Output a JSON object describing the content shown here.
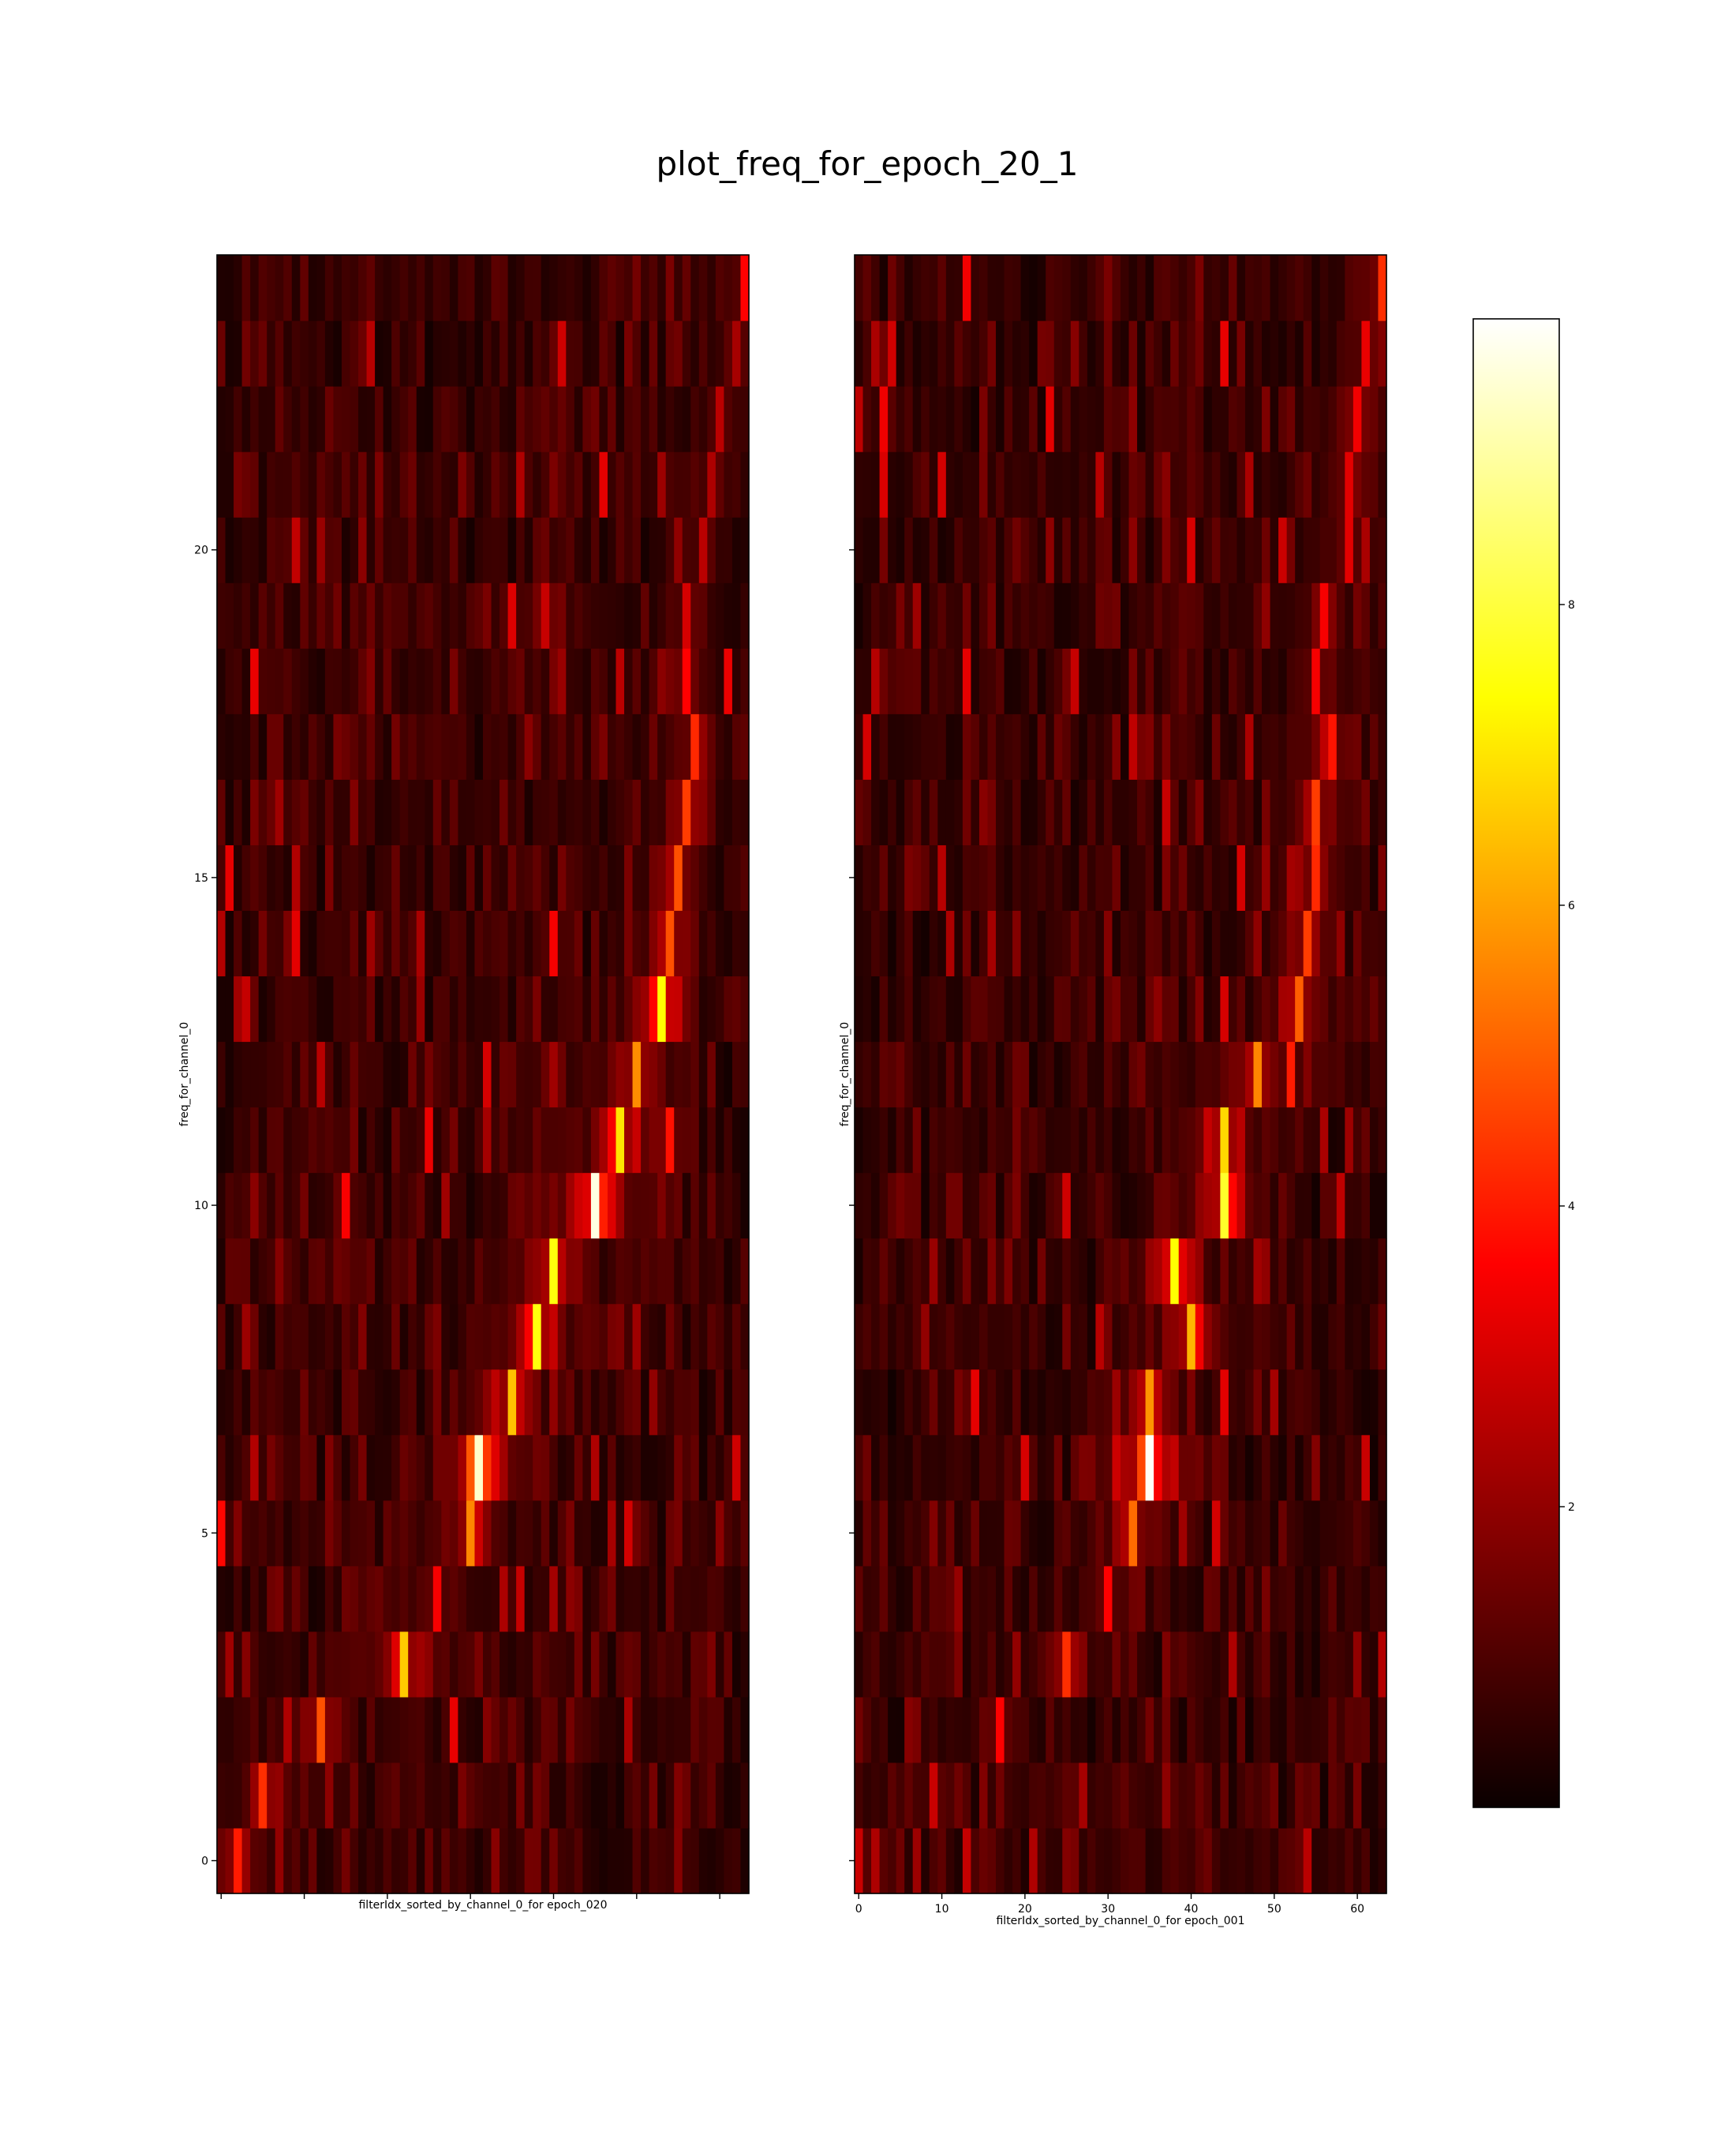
{
  "title": "plot_freq_for_epoch_20_1",
  "colors": {
    "background": "#ffffff",
    "axis": "#000000",
    "colormap": "hot"
  },
  "chart_data": [
    {
      "type": "heatmap",
      "panel": "left",
      "xlabel": "filterIdx_sorted_by_channel_0_for epoch_020",
      "ylabel": "freq_for_channel_0",
      "x_tick_labels_shown": false,
      "yticks": [
        0,
        5,
        10,
        15,
        20
      ],
      "ylim": [
        -0.5,
        24.5
      ],
      "n_filters": 64,
      "n_freqs": 25,
      "peak_by_freq": [
        2,
        5,
        12,
        22,
        26,
        30,
        31,
        35,
        38,
        40,
        45,
        48,
        50,
        53,
        54,
        55,
        56,
        57,
        56,
        56,
        58,
        59,
        60,
        62,
        63
      ],
      "peak_value_by_freq": [
        4.0,
        4.3,
        4.8,
        6.6,
        3.5,
        5.6,
        9.4,
        6.5,
        7.5,
        7.5,
        9.6,
        7.0,
        5.7,
        7.4,
        4.8,
        4.8,
        4.5,
        4.2,
        3.6,
        3.0,
        2.6,
        2.4,
        2.6,
        2.3,
        3.6
      ]
    },
    {
      "type": "heatmap",
      "panel": "right",
      "xlabel": "filterIdx_sorted_by_channel_0_for epoch_001",
      "ylabel": "freq_for_channel_0",
      "xticks": [
        0,
        10,
        20,
        30,
        40,
        50,
        60
      ],
      "xlim": [
        -0.5,
        63.5
      ],
      "ylim": [
        -0.5,
        24.5
      ],
      "n_filters": 64,
      "n_freqs": 25,
      "peak_by_freq": [
        2,
        9,
        17,
        25,
        30,
        33,
        35,
        35,
        40,
        38,
        44,
        44,
        48,
        53,
        54,
        55,
        55,
        57,
        55,
        56,
        59,
        59,
        60,
        61,
        63
      ],
      "peak_value_by_freq": [
        2.4,
        2.8,
        3.6,
        4.3,
        3.6,
        5.2,
        9.8,
        5.8,
        6.3,
        7.4,
        7.8,
        6.8,
        5.6,
        5.0,
        4.5,
        4.2,
        4.5,
        3.9,
        3.5,
        3.5,
        3.2,
        3.2,
        3.4,
        3.3,
        4.3
      ]
    },
    {
      "type": "colorbar",
      "colormap": "hot",
      "ticks": [
        2,
        4,
        6,
        8
      ],
      "range": [
        0,
        9.9
      ]
    }
  ]
}
